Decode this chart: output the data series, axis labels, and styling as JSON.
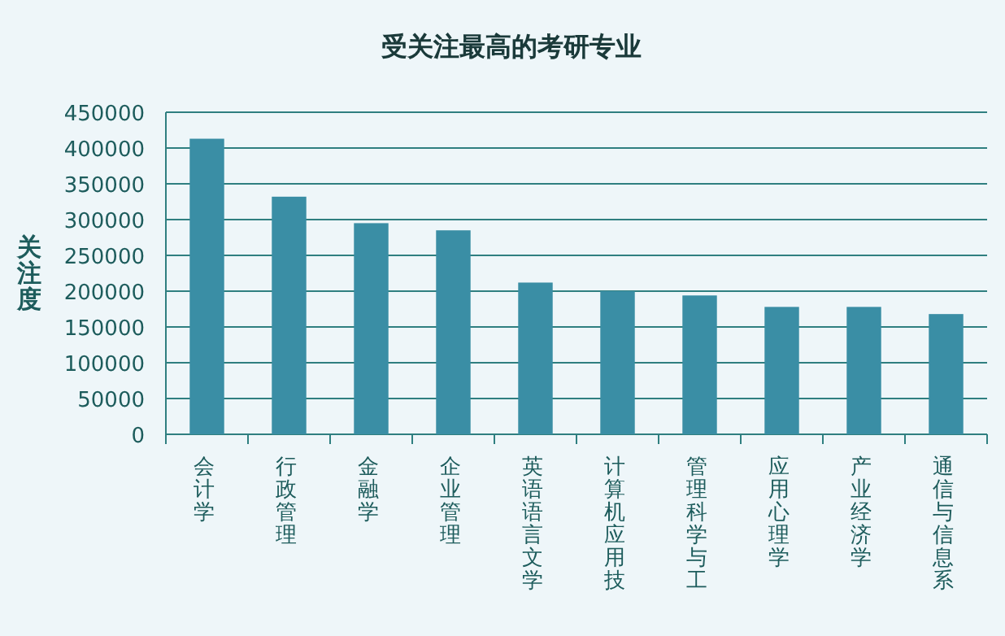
{
  "chart_data": {
    "type": "bar",
    "title": "受关注最高的考研专业",
    "ylabel": "关注度",
    "categories": [
      "会计学",
      "行政管理",
      "金融学",
      "企业管理",
      "英语语言文学",
      "计算机应用技",
      "管理科学与工",
      "应用心理学",
      "产业经济学",
      "通信与信息系"
    ],
    "values": [
      413000,
      332000,
      295000,
      285000,
      212000,
      200000,
      194000,
      178000,
      178000,
      168000
    ],
    "color": "#3a8ea5",
    "ylim": [
      0,
      450000
    ],
    "yticks": [
      0,
      50000,
      100000,
      150000,
      200000,
      250000,
      300000,
      350000,
      400000,
      450000
    ],
    "grid": "y"
  }
}
